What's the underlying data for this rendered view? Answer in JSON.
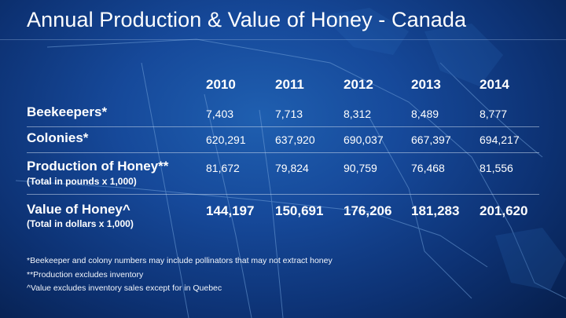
{
  "title": "Annual Production & Value of Honey - Canada",
  "years": [
    "2010",
    "2011",
    "2012",
    "2013",
    "2014"
  ],
  "rows": [
    {
      "label": "Beekeepers*",
      "sublabel": "",
      "values": [
        "7,403",
        "7,713",
        "8,312",
        "8,489",
        "8,777"
      ]
    },
    {
      "label": "Colonies*",
      "sublabel": "",
      "values": [
        "620,291",
        "637,920",
        "690,037",
        "667,397",
        "694,217"
      ]
    },
    {
      "label": "Production of Honey**",
      "sublabel": "(Total in pounds x 1,000)",
      "values": [
        "81,672",
        "79,824",
        "90,759",
        "76,468",
        "81,556"
      ]
    },
    {
      "label": "Value of Honey^",
      "sublabel": "(Total in dollars x 1,000)",
      "values": [
        "144,197",
        "150,691",
        "176,206",
        "181,283",
        "201,620"
      ]
    }
  ],
  "footnotes": [
    "*Beekeeper and colony numbers may include pollinators that may not extract honey",
    "**Production excludes inventory",
    "^Value excludes inventory sales except for in Quebec"
  ],
  "colors": {
    "background_center": "#1f5fb0",
    "background_edge": "#07204f",
    "text": "#ffffff"
  }
}
